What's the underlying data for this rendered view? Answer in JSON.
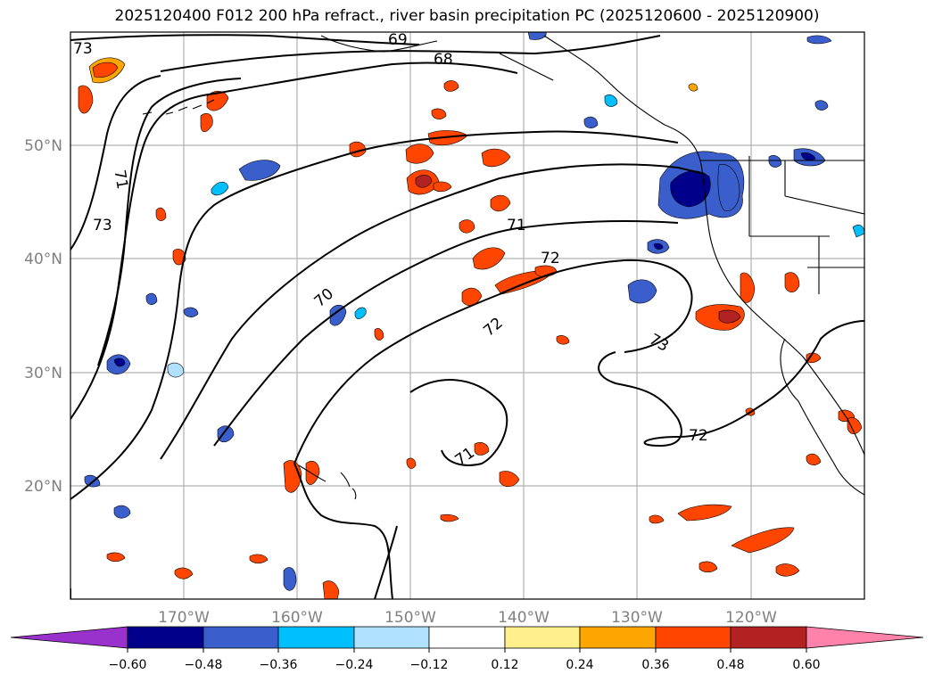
{
  "title": "2025120400 F012 200 hPa refract., river basin precipitation PC (2025120600 - 2025120900)",
  "map": {
    "extent": {
      "lon_min": -180,
      "lon_max": -110,
      "lat_min": 10,
      "lat_max": 60
    },
    "lon_ticks": [
      {
        "value": -170,
        "label": "170°W"
      },
      {
        "value": -160,
        "label": "160°W"
      },
      {
        "value": -150,
        "label": "150°W"
      },
      {
        "value": -140,
        "label": "140°W"
      },
      {
        "value": -130,
        "label": "130°W"
      },
      {
        "value": -120,
        "label": "120°W"
      }
    ],
    "lat_ticks": [
      {
        "value": 20,
        "label": "20°N"
      },
      {
        "value": 30,
        "label": "30°N"
      },
      {
        "value": 40,
        "label": "40°N"
      },
      {
        "value": 50,
        "label": "50°N"
      }
    ],
    "gridlines": true,
    "contour_labels": [
      "73",
      "71",
      "73",
      "69",
      "68",
      "70",
      "71",
      "72",
      "72",
      "73",
      "71",
      "72"
    ]
  },
  "colorbar": {
    "ticks": [
      "−0.60",
      "−0.48",
      "−0.36",
      "−0.24",
      "−0.12",
      "0.12",
      "0.24",
      "0.36",
      "0.48",
      "0.60"
    ],
    "colors": [
      "#9932cc",
      "#00008b",
      "#3a5fcd",
      "#00bfff",
      "#b0e2ff",
      "#ffffff",
      "#fff08c",
      "#ffa500",
      "#ff4500",
      "#b22222",
      "#ff82ab"
    ]
  }
}
